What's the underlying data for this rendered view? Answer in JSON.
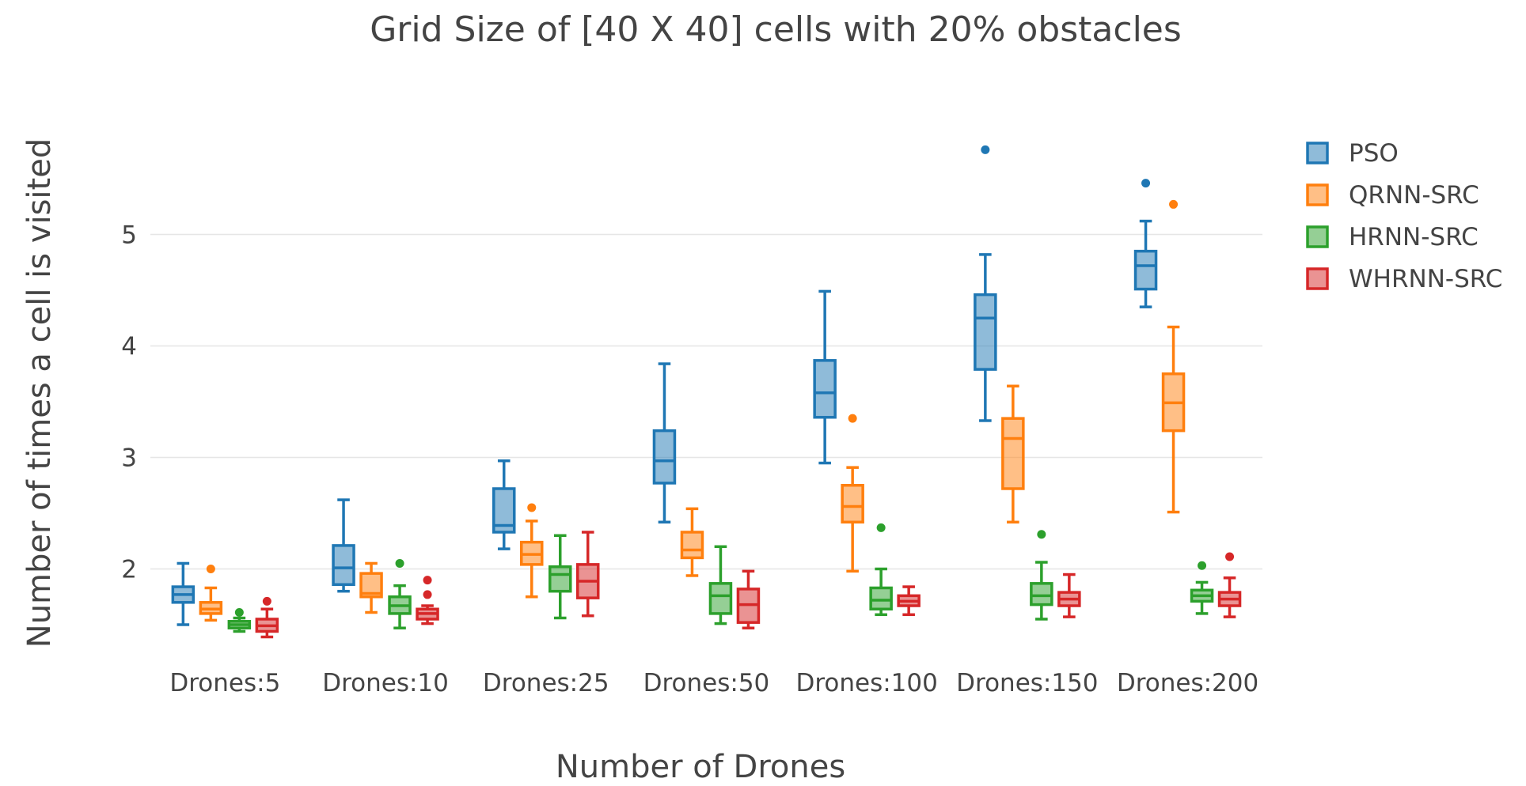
{
  "chart_data": {
    "type": "box",
    "title": "Grid Size of [40 X 40] cells with 20% obstacles",
    "xlabel": "Number of Drones",
    "ylabel": "Number of times a cell is visited",
    "categories": [
      "Drones:5",
      "Drones:10",
      "Drones:25",
      "Drones:50",
      "Drones:100",
      "Drones:150",
      "Drones:200"
    ],
    "ylim": [
      1.0,
      6.0
    ],
    "yticks": [
      2,
      3,
      4,
      5
    ],
    "grid": true,
    "legend_position": "top-right",
    "series": [
      {
        "name": "PSO",
        "color": "#1f77b4",
        "boxes": [
          {
            "min": 1.5,
            "q1": 1.7,
            "median": 1.77,
            "q3": 1.84,
            "max": 2.05,
            "outliers": []
          },
          {
            "min": 1.8,
            "q1": 1.86,
            "median": 2.01,
            "q3": 2.21,
            "max": 2.62,
            "outliers": []
          },
          {
            "min": 2.18,
            "q1": 2.33,
            "median": 2.39,
            "q3": 2.72,
            "max": 2.97,
            "outliers": []
          },
          {
            "min": 2.42,
            "q1": 2.77,
            "median": 2.97,
            "q3": 3.24,
            "max": 3.84,
            "outliers": []
          },
          {
            "min": 2.95,
            "q1": 3.36,
            "median": 3.58,
            "q3": 3.87,
            "max": 4.49,
            "outliers": []
          },
          {
            "min": 3.33,
            "q1": 3.79,
            "median": 4.25,
            "q3": 4.46,
            "max": 4.82,
            "outliers": [
              5.76
            ]
          },
          {
            "min": 4.35,
            "q1": 4.51,
            "median": 4.72,
            "q3": 4.85,
            "max": 5.12,
            "outliers": [
              5.46
            ]
          }
        ]
      },
      {
        "name": "QRNN-SRC",
        "color": "#ff7f0e",
        "boxes": [
          {
            "min": 1.54,
            "q1": 1.6,
            "median": 1.64,
            "q3": 1.7,
            "max": 1.83,
            "outliers": [
              2.0
            ]
          },
          {
            "min": 1.61,
            "q1": 1.75,
            "median": 1.78,
            "q3": 1.96,
            "max": 2.05,
            "outliers": []
          },
          {
            "min": 1.75,
            "q1": 2.04,
            "median": 2.13,
            "q3": 2.24,
            "max": 2.43,
            "outliers": [
              2.55
            ]
          },
          {
            "min": 1.94,
            "q1": 2.1,
            "median": 2.17,
            "q3": 2.33,
            "max": 2.54,
            "outliers": []
          },
          {
            "min": 1.98,
            "q1": 2.42,
            "median": 2.56,
            "q3": 2.75,
            "max": 2.91,
            "outliers": [
              3.35
            ]
          },
          {
            "min": 2.42,
            "q1": 2.72,
            "median": 3.17,
            "q3": 3.35,
            "max": 3.64,
            "outliers": []
          },
          {
            "min": 2.51,
            "q1": 3.24,
            "median": 3.49,
            "q3": 3.75,
            "max": 4.17,
            "outliers": [
              5.27
            ]
          }
        ]
      },
      {
        "name": "HRNN-SRC",
        "color": "#2ca02c",
        "boxes": [
          {
            "min": 1.44,
            "q1": 1.47,
            "median": 1.5,
            "q3": 1.53,
            "max": 1.56,
            "outliers": [
              1.61
            ]
          },
          {
            "min": 1.47,
            "q1": 1.6,
            "median": 1.67,
            "q3": 1.75,
            "max": 1.85,
            "outliers": [
              2.05
            ]
          },
          {
            "min": 1.56,
            "q1": 1.8,
            "median": 1.95,
            "q3": 2.02,
            "max": 2.3,
            "outliers": []
          },
          {
            "min": 1.51,
            "q1": 1.6,
            "median": 1.76,
            "q3": 1.87,
            "max": 2.2,
            "outliers": []
          },
          {
            "min": 1.59,
            "q1": 1.64,
            "median": 1.72,
            "q3": 1.83,
            "max": 2.0,
            "outliers": [
              2.37
            ]
          },
          {
            "min": 1.55,
            "q1": 1.68,
            "median": 1.76,
            "q3": 1.87,
            "max": 2.06,
            "outliers": [
              2.31
            ]
          },
          {
            "min": 1.6,
            "q1": 1.71,
            "median": 1.76,
            "q3": 1.81,
            "max": 1.88,
            "outliers": [
              2.03
            ]
          }
        ]
      },
      {
        "name": "WHRNN-SRC",
        "color": "#d62728",
        "boxes": [
          {
            "min": 1.39,
            "q1": 1.44,
            "median": 1.49,
            "q3": 1.55,
            "max": 1.64,
            "outliers": [
              1.71
            ]
          },
          {
            "min": 1.51,
            "q1": 1.55,
            "median": 1.6,
            "q3": 1.64,
            "max": 1.67,
            "outliers": [
              1.77,
              1.9
            ]
          },
          {
            "min": 1.58,
            "q1": 1.74,
            "median": 1.89,
            "q3": 2.04,
            "max": 2.33,
            "outliers": []
          },
          {
            "min": 1.47,
            "q1": 1.52,
            "median": 1.68,
            "q3": 1.82,
            "max": 1.98,
            "outliers": []
          },
          {
            "min": 1.59,
            "q1": 1.67,
            "median": 1.71,
            "q3": 1.76,
            "max": 1.84,
            "outliers": []
          },
          {
            "min": 1.57,
            "q1": 1.67,
            "median": 1.73,
            "q3": 1.79,
            "max": 1.95,
            "outliers": []
          },
          {
            "min": 1.57,
            "q1": 1.67,
            "median": 1.73,
            "q3": 1.79,
            "max": 1.92,
            "outliers": [
              2.11
            ]
          }
        ]
      }
    ]
  }
}
